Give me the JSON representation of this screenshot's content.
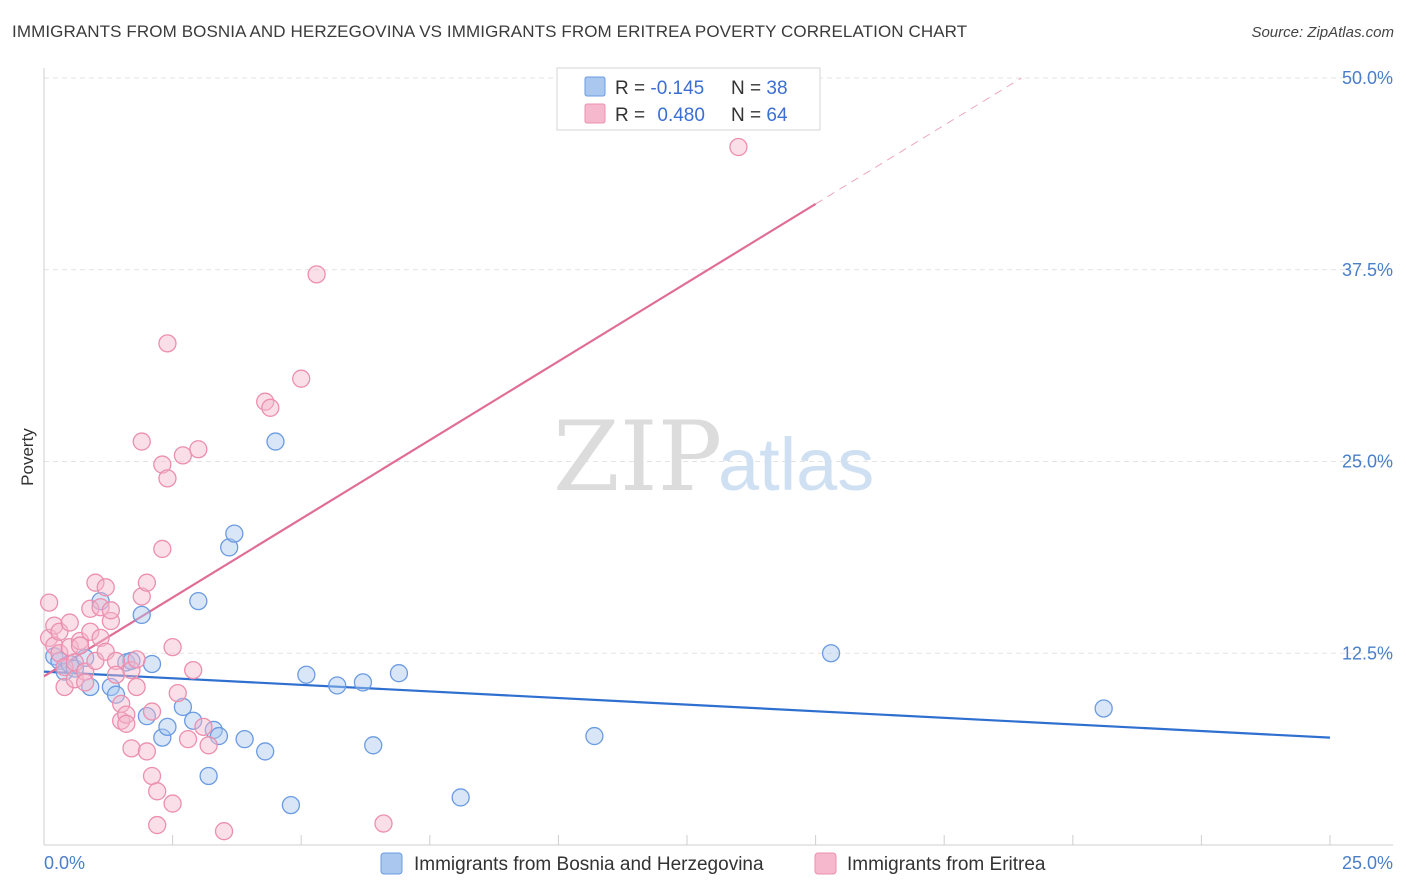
{
  "title": "IMMIGRANTS FROM BOSNIA AND HERZEGOVINA VS IMMIGRANTS FROM ERITREA POVERTY CORRELATION CHART",
  "source": "Source: ZipAtlas.com",
  "watermark": {
    "part1": "ZIP",
    "part2": "atlas"
  },
  "colors": {
    "blue_fill": "#a9c7ef",
    "blue_stroke": "#6b9be0",
    "blue_line": "#2e6fcf",
    "pink_fill": "#f5b8cc",
    "pink_stroke": "#ec8fae",
    "pink_line": "#e06d96",
    "grid": "#e3e3e3",
    "axis_text": "#4a7ec8"
  },
  "legend": {
    "rows": [
      {
        "r_label": "R = ",
        "r_value": "-0.145",
        "n_label": "N = ",
        "n_value": "38"
      },
      {
        "r_label": "R = ",
        "r_value": "0.480",
        "n_label": "N = ",
        "n_value": "64"
      }
    ]
  },
  "chart_data": {
    "type": "scatter",
    "ylabel": "Poverty",
    "xlim": [
      0,
      25
    ],
    "ylim": [
      0,
      50
    ],
    "x_ticks": [
      "0.0%",
      "25.0%"
    ],
    "y_ticks": [
      {
        "value": 12.5,
        "label": "12.5%"
      },
      {
        "value": 25.0,
        "label": "25.0%"
      },
      {
        "value": 37.5,
        "label": "37.5%"
      },
      {
        "value": 50.0,
        "label": "50.0%"
      }
    ],
    "series": [
      {
        "name": "Immigrants from Bosnia and Herzegovina",
        "color": "blue",
        "trend": {
          "x0": 0.0,
          "y0": 11.3,
          "x1": 25.0,
          "y1": 7.0,
          "dash_from": 25.0
        },
        "points": [
          [
            0.2,
            12.3
          ],
          [
            0.3,
            12.0
          ],
          [
            0.4,
            11.3
          ],
          [
            0.5,
            11.8
          ],
          [
            0.6,
            11.5
          ],
          [
            0.8,
            12.2
          ],
          [
            0.9,
            10.3
          ],
          [
            1.1,
            15.9
          ],
          [
            1.3,
            10.3
          ],
          [
            1.4,
            9.8
          ],
          [
            1.6,
            11.9
          ],
          [
            1.7,
            12.0
          ],
          [
            1.9,
            15.0
          ],
          [
            2.0,
            8.4
          ],
          [
            2.1,
            11.8
          ],
          [
            2.3,
            7.0
          ],
          [
            2.4,
            7.7
          ],
          [
            2.7,
            9.0
          ],
          [
            2.9,
            8.1
          ],
          [
            3.0,
            15.9
          ],
          [
            3.2,
            4.5
          ],
          [
            3.3,
            7.5
          ],
          [
            3.4,
            7.1
          ],
          [
            3.6,
            19.4
          ],
          [
            3.7,
            20.3
          ],
          [
            3.9,
            6.9
          ],
          [
            4.3,
            6.1
          ],
          [
            4.5,
            26.3
          ],
          [
            4.8,
            2.6
          ],
          [
            5.1,
            11.1
          ],
          [
            5.7,
            10.4
          ],
          [
            6.2,
            10.6
          ],
          [
            6.4,
            6.5
          ],
          [
            6.9,
            11.2
          ],
          [
            8.1,
            3.1
          ],
          [
            10.7,
            7.1
          ],
          [
            15.3,
            12.5
          ],
          [
            20.6,
            8.9
          ]
        ]
      },
      {
        "name": "Immigrants from Eritrea",
        "color": "pink",
        "trend": {
          "x0": 0.0,
          "y0": 11.0,
          "x1": 19.0,
          "y1": 50.0,
          "dash_from": 15.0
        },
        "points": [
          [
            0.1,
            15.8
          ],
          [
            0.1,
            13.5
          ],
          [
            0.2,
            13.0
          ],
          [
            0.2,
            14.3
          ],
          [
            0.3,
            12.5
          ],
          [
            0.3,
            13.9
          ],
          [
            0.4,
            10.3
          ],
          [
            0.4,
            11.6
          ],
          [
            0.5,
            12.9
          ],
          [
            0.5,
            14.5
          ],
          [
            0.6,
            10.8
          ],
          [
            0.6,
            11.9
          ],
          [
            0.7,
            13.3
          ],
          [
            0.7,
            13.0
          ],
          [
            0.8,
            11.3
          ],
          [
            0.8,
            10.6
          ],
          [
            0.9,
            13.9
          ],
          [
            0.9,
            15.4
          ],
          [
            1.0,
            12.0
          ],
          [
            1.0,
            17.1
          ],
          [
            1.1,
            13.5
          ],
          [
            1.1,
            15.5
          ],
          [
            1.2,
            16.8
          ],
          [
            1.2,
            12.6
          ],
          [
            1.3,
            14.6
          ],
          [
            1.3,
            15.3
          ],
          [
            1.4,
            12.0
          ],
          [
            1.4,
            11.1
          ],
          [
            1.5,
            9.2
          ],
          [
            1.5,
            8.1
          ],
          [
            1.6,
            8.5
          ],
          [
            1.6,
            7.9
          ],
          [
            1.7,
            6.3
          ],
          [
            1.7,
            11.4
          ],
          [
            1.8,
            12.1
          ],
          [
            1.8,
            10.3
          ],
          [
            1.9,
            16.2
          ],
          [
            1.9,
            26.3
          ],
          [
            2.0,
            17.1
          ],
          [
            2.0,
            6.1
          ],
          [
            2.1,
            8.7
          ],
          [
            2.1,
            4.5
          ],
          [
            2.2,
            3.5
          ],
          [
            2.2,
            1.3
          ],
          [
            2.3,
            24.8
          ],
          [
            2.3,
            19.3
          ],
          [
            2.4,
            23.9
          ],
          [
            2.4,
            32.7
          ],
          [
            2.5,
            12.9
          ],
          [
            2.5,
            2.7
          ],
          [
            2.6,
            9.9
          ],
          [
            2.7,
            25.4
          ],
          [
            2.8,
            6.9
          ],
          [
            2.9,
            11.4
          ],
          [
            3.0,
            25.8
          ],
          [
            3.1,
            7.7
          ],
          [
            3.2,
            6.5
          ],
          [
            3.5,
            0.9
          ],
          [
            4.3,
            28.9
          ],
          [
            4.4,
            28.5
          ],
          [
            5.0,
            30.4
          ],
          [
            5.3,
            37.2
          ],
          [
            6.6,
            1.4
          ],
          [
            13.5,
            45.5
          ]
        ]
      }
    ]
  }
}
